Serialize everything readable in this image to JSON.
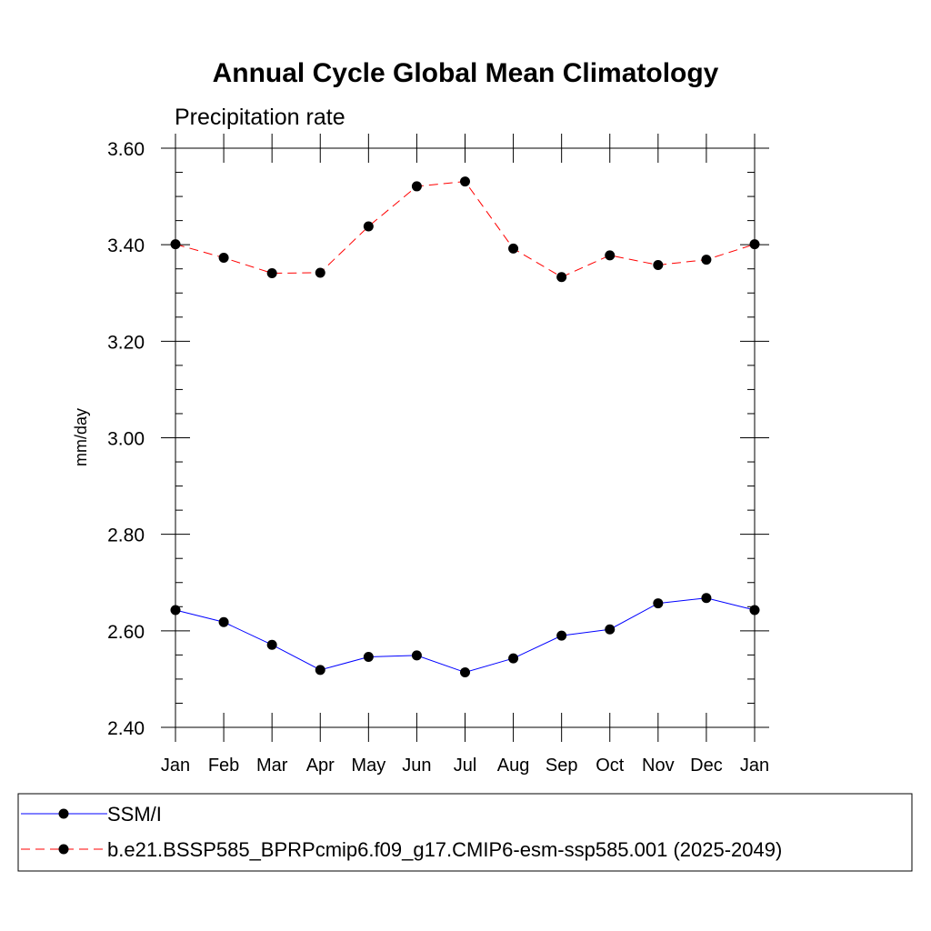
{
  "chart_data": {
    "type": "line",
    "title": "Annual Cycle Global Mean Climatology",
    "subtitle": "Precipitation rate",
    "xlabel": "",
    "ylabel": "mm/day",
    "categories": [
      "Jan",
      "Feb",
      "Mar",
      "Apr",
      "May",
      "Jun",
      "Jul",
      "Aug",
      "Sep",
      "Oct",
      "Nov",
      "Dec",
      "Jan"
    ],
    "ylim": [
      2.4,
      3.6
    ],
    "yticks": [
      "2.40",
      "2.60",
      "2.80",
      "3.00",
      "3.20",
      "3.40",
      "3.60"
    ],
    "series": [
      {
        "name": "SSM/I",
        "color": "#0000ff",
        "line_style": "solid",
        "values": [
          2.643,
          2.618,
          2.571,
          2.519,
          2.546,
          2.549,
          2.514,
          2.543,
          2.59,
          2.603,
          2.657,
          2.668,
          2.643
        ]
      },
      {
        "name": "b.e21.BSSP585_BPRPcmip6.f09_g17.CMIP6-esm-ssp585.001 (2025-2049)",
        "color": "#ff0000",
        "line_style": "dashed",
        "values": [
          3.401,
          3.373,
          3.341,
          3.342,
          3.438,
          3.521,
          3.531,
          3.392,
          3.333,
          3.378,
          3.358,
          3.369,
          3.401
        ]
      }
    ],
    "grid": false,
    "legend_position": "bottom"
  }
}
